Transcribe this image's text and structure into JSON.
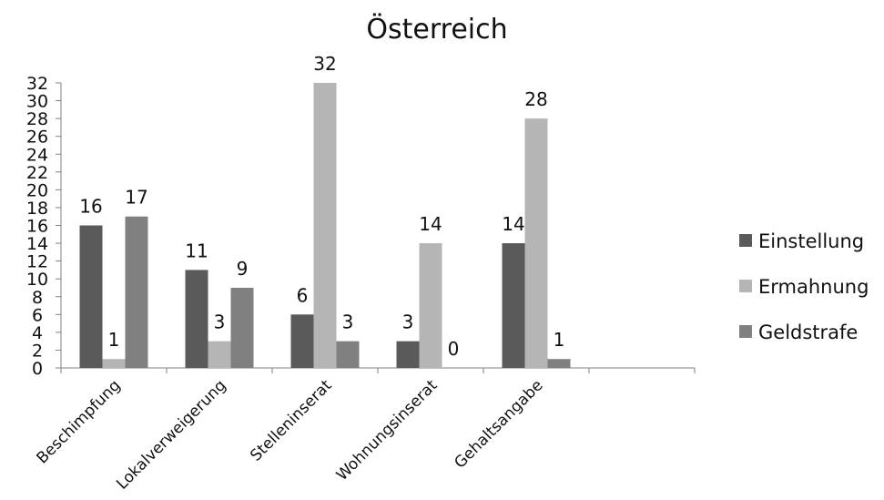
{
  "chart_data": {
    "type": "bar",
    "title": "Österreich",
    "xlabel": "",
    "ylabel": "",
    "ylim": [
      0,
      32
    ],
    "yticks": [
      0,
      2,
      4,
      6,
      8,
      10,
      12,
      14,
      16,
      18,
      20,
      22,
      24,
      26,
      28,
      30,
      32
    ],
    "grid": false,
    "legend_position": "right",
    "categories": [
      "Beschimpfung",
      "Lokalverweigerung",
      "Stelleninserat",
      "Wohnungsinserat",
      "Gehaltsangabe",
      ""
    ],
    "series": [
      {
        "name": "Einstellung",
        "color": "#5a5a5a",
        "values": [
          16,
          11,
          6,
          3,
          14,
          null
        ]
      },
      {
        "name": "Ermahnung",
        "color": "#b5b5b5",
        "values": [
          1,
          3,
          32,
          14,
          28,
          null
        ]
      },
      {
        "name": "Geldstrafe",
        "color": "#808080",
        "values": [
          17,
          9,
          3,
          0,
          1,
          null
        ]
      }
    ]
  }
}
